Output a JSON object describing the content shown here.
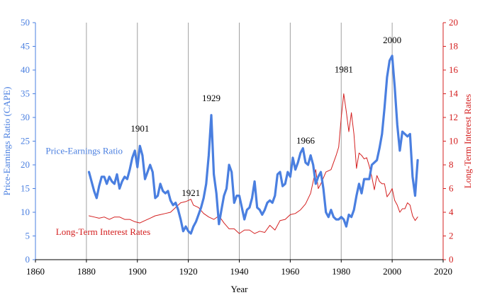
{
  "chart_data": {
    "type": "line",
    "xlabel": "Year",
    "ylabel_left": "Price-Earnings Ratio (CAPE)",
    "ylabel_right": "Long-Term Interest Rates",
    "xlim": [
      1860,
      2020
    ],
    "ylim_left": [
      0,
      50
    ],
    "ylim_right": [
      0,
      20
    ],
    "x_ticks": [
      1860,
      1880,
      1900,
      1920,
      1940,
      1960,
      1980,
      2000,
      2020
    ],
    "y_ticks_left": [
      0,
      5,
      10,
      15,
      20,
      25,
      30,
      35,
      40,
      45,
      50
    ],
    "y_ticks_right": [
      0,
      2,
      4,
      6,
      8,
      10,
      12,
      14,
      16,
      18,
      20
    ],
    "vertical_gridlines": [
      1880,
      1900,
      1920,
      1940,
      1960,
      1980,
      2000
    ],
    "colors": {
      "pe": "#4a7fe0",
      "rates": "#d42020",
      "grid": "#a0a0a0",
      "left_axis": "#4a7fe0",
      "right_axis": "#d42020"
    },
    "series": [
      {
        "name": "Price-Earnings Ratio",
        "axis": "left",
        "x": [
          1881,
          1882,
          1883,
          1884,
          1885,
          1886,
          1887,
          1888,
          1889,
          1890,
          1891,
          1892,
          1893,
          1894,
          1895,
          1896,
          1897,
          1898,
          1899,
          1900,
          1901,
          1902,
          1903,
          1904,
          1905,
          1906,
          1907,
          1908,
          1909,
          1910,
          1911,
          1912,
          1913,
          1914,
          1915,
          1916,
          1917,
          1918,
          1919,
          1920,
          1921,
          1922,
          1923,
          1924,
          1925,
          1926,
          1927,
          1928,
          1929,
          1930,
          1931,
          1932,
          1933,
          1934,
          1935,
          1936,
          1937,
          1938,
          1939,
          1940,
          1941,
          1942,
          1943,
          1944,
          1945,
          1946,
          1947,
          1948,
          1949,
          1950,
          1951,
          1952,
          1953,
          1954,
          1955,
          1956,
          1957,
          1958,
          1959,
          1960,
          1961,
          1962,
          1963,
          1964,
          1965,
          1966,
          1967,
          1968,
          1969,
          1970,
          1971,
          1972,
          1973,
          1974,
          1975,
          1976,
          1977,
          1978,
          1979,
          1980,
          1981,
          1982,
          1983,
          1984,
          1985,
          1986,
          1987,
          1988,
          1989,
          1990,
          1991,
          1992,
          1993,
          1994,
          1995,
          1996,
          1997,
          1998,
          1999,
          2000,
          2001,
          2002,
          2003,
          2004,
          2005,
          2006,
          2007,
          2008,
          2009,
          2010
        ],
        "values": [
          18.5,
          16.5,
          14.5,
          13.0,
          15.5,
          17.5,
          17.5,
          16.0,
          17.5,
          16.5,
          16.0,
          18.0,
          15.0,
          16.5,
          17.5,
          17.0,
          19.0,
          21.5,
          23.0,
          19.5,
          24.0,
          22.0,
          17.0,
          18.5,
          20.0,
          18.5,
          13.0,
          13.5,
          16.0,
          14.5,
          14.0,
          14.5,
          12.5,
          11.5,
          12.0,
          10.5,
          8.5,
          6.0,
          7.0,
          6.0,
          5.5,
          7.0,
          8.0,
          9.5,
          11.0,
          13.0,
          16.0,
          22.0,
          30.5,
          18.0,
          14.0,
          7.5,
          10.5,
          13.5,
          15.0,
          20.0,
          18.5,
          12.0,
          13.5,
          13.5,
          11.0,
          8.5,
          10.5,
          11.0,
          13.0,
          16.5,
          11.0,
          10.5,
          9.5,
          10.5,
          12.0,
          12.5,
          12.0,
          13.5,
          18.0,
          18.5,
          15.5,
          16.0,
          18.5,
          17.5,
          21.5,
          19.0,
          20.5,
          22.5,
          23.5,
          20.5,
          20.0,
          22.0,
          20.0,
          16.0,
          17.5,
          18.5,
          15.0,
          10.0,
          9.0,
          10.5,
          9.0,
          8.5,
          8.5,
          9.0,
          8.5,
          7.0,
          9.5,
          9.0,
          10.5,
          13.5,
          16.0,
          14.0,
          17.0,
          17.0,
          17.0,
          20.0,
          20.5,
          21.0,
          23.5,
          26.5,
          32.0,
          38.5,
          42.0,
          43.0,
          36.5,
          28.5,
          23.0,
          27.0,
          26.5,
          26.0,
          26.5,
          17.5,
          13.5,
          21.0
        ]
      },
      {
        "name": "Long-Term Interest Rates",
        "axis": "right",
        "x": [
          1881,
          1883,
          1885,
          1887,
          1889,
          1891,
          1893,
          1895,
          1897,
          1899,
          1901,
          1903,
          1905,
          1907,
          1909,
          1911,
          1913,
          1915,
          1917,
          1919,
          1920,
          1921,
          1922,
          1924,
          1926,
          1928,
          1930,
          1932,
          1934,
          1936,
          1938,
          1940,
          1942,
          1944,
          1946,
          1948,
          1950,
          1952,
          1954,
          1956,
          1958,
          1960,
          1962,
          1964,
          1966,
          1968,
          1969,
          1970,
          1971,
          1972,
          1974,
          1976,
          1978,
          1979,
          1980,
          1981,
          1982,
          1983,
          1984,
          1985,
          1986,
          1987,
          1988,
          1989,
          1990,
          1991,
          1992,
          1993,
          1994,
          1995,
          1996,
          1997,
          1998,
          1999,
          2000,
          2001,
          2002,
          2003,
          2004,
          2005,
          2006,
          2007,
          2008,
          2009,
          2010
        ],
        "values": [
          3.7,
          3.6,
          3.5,
          3.6,
          3.4,
          3.6,
          3.6,
          3.4,
          3.4,
          3.2,
          3.1,
          3.3,
          3.5,
          3.7,
          3.8,
          3.9,
          4.0,
          4.4,
          4.8,
          4.9,
          5.0,
          5.1,
          4.6,
          4.4,
          3.9,
          3.6,
          3.4,
          3.7,
          3.1,
          2.6,
          2.6,
          2.2,
          2.5,
          2.5,
          2.2,
          2.4,
          2.3,
          2.9,
          2.5,
          3.3,
          3.4,
          3.8,
          3.9,
          4.2,
          4.7,
          5.6,
          6.6,
          7.6,
          6.0,
          6.4,
          7.4,
          7.6,
          8.8,
          9.5,
          12.0,
          14.0,
          12.5,
          10.8,
          12.4,
          10.6,
          7.7,
          9.0,
          8.8,
          8.5,
          8.6,
          7.9,
          7.0,
          5.9,
          7.1,
          6.6,
          6.4,
          6.4,
          5.3,
          5.6,
          6.0,
          5.0,
          4.6,
          4.0,
          4.3,
          4.3,
          4.8,
          4.6,
          3.7,
          3.3,
          3.6
        ]
      }
    ],
    "annotations": [
      {
        "text": "1901",
        "x": 1901,
        "y": 27
      },
      {
        "text": "1921",
        "x": 1921,
        "y": 13.4
      },
      {
        "text": "1929",
        "x": 1929,
        "y": 33.4
      },
      {
        "text": "1966",
        "x": 1966,
        "y": 24.5
      },
      {
        "text": "1981",
        "x": 1981,
        "y": 39.5
      },
      {
        "text": "2000",
        "x": 2000,
        "y": 45.7
      }
    ],
    "series_labels": [
      {
        "text": "Price-Earnings Ratio",
        "series": "pe",
        "x": 1864,
        "y": 22.3
      },
      {
        "text": "Long-Term Interest Rates",
        "series": "rates",
        "x": 1868,
        "y": 5.2
      }
    ]
  }
}
